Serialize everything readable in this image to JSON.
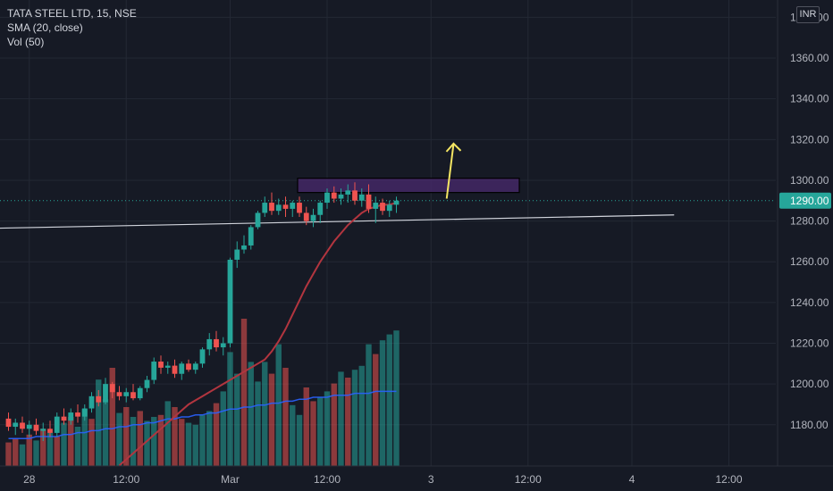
{
  "legend": {
    "symbol": "TATA STEEL LTD, 15, NSE",
    "sma": "SMA (20, close)",
    "vol": "Vol (50)"
  },
  "currency": "INR",
  "colors": {
    "background": "#161a25",
    "up": "#26a69a",
    "down": "#ef5350",
    "sma": "#b2353f",
    "vol_ma": "#2962ff",
    "resistance_box": "#4a2a6e",
    "arrow": "#f5e663",
    "support_line": "#d1d4dc",
    "price_badge": "#26a69a"
  },
  "chart_data": {
    "type": "candlestick",
    "symbol": "TATA STEEL LTD",
    "interval": "15",
    "exchange": "NSE",
    "y_axis": {
      "ticks": [
        "1380.00",
        "1360.00",
        "1340.00",
        "1320.00",
        "1300.00",
        "1280.00",
        "1260.00",
        "1240.00",
        "1220.00",
        "1200.00",
        "1180.00"
      ],
      "ylim": [
        1165,
        1385
      ]
    },
    "x_axis": {
      "ticks": [
        {
          "label": "28",
          "bar": 3
        },
        {
          "label": "12:00",
          "bar": 17
        },
        {
          "label": "Mar",
          "bar": 32
        },
        {
          "label": "12:00",
          "bar": 46
        },
        {
          "label": "3",
          "bar": 61
        },
        {
          "label": "12:00",
          "bar": 75
        },
        {
          "label": "4",
          "bar": 90
        },
        {
          "label": "12:00",
          "bar": 104
        }
      ]
    },
    "last_price": "1290.00",
    "last_price_value": 1290,
    "candles": [
      [
        1183,
        1186,
        1177,
        1179
      ],
      [
        1179,
        1183,
        1175,
        1181
      ],
      [
        1181,
        1184,
        1176,
        1178
      ],
      [
        1178,
        1182,
        1174,
        1180
      ],
      [
        1180,
        1183,
        1175,
        1177
      ],
      [
        1177,
        1181,
        1172,
        1178
      ],
      [
        1178,
        1182,
        1174,
        1176
      ],
      [
        1176,
        1186,
        1174,
        1184
      ],
      [
        1184,
        1188,
        1180,
        1182
      ],
      [
        1182,
        1188,
        1180,
        1186
      ],
      [
        1186,
        1190,
        1181,
        1184
      ],
      [
        1184,
        1190,
        1182,
        1188
      ],
      [
        1188,
        1196,
        1186,
        1194
      ],
      [
        1194,
        1197,
        1189,
        1191
      ],
      [
        1191,
        1203,
        1190,
        1200
      ],
      [
        1200,
        1201,
        1193,
        1196
      ],
      [
        1196,
        1199,
        1192,
        1194
      ],
      [
        1194,
        1198,
        1191,
        1196
      ],
      [
        1196,
        1200,
        1192,
        1193
      ],
      [
        1193,
        1199,
        1192,
        1198
      ],
      [
        1198,
        1204,
        1196,
        1202
      ],
      [
        1202,
        1213,
        1200,
        1211
      ],
      [
        1211,
        1214,
        1205,
        1208
      ],
      [
        1208,
        1211,
        1205,
        1209
      ],
      [
        1209,
        1212,
        1203,
        1205
      ],
      [
        1205,
        1211,
        1202,
        1210
      ],
      [
        1210,
        1212,
        1206,
        1207
      ],
      [
        1207,
        1211,
        1205,
        1210
      ],
      [
        1210,
        1218,
        1208,
        1217
      ],
      [
        1217,
        1225,
        1214,
        1222
      ],
      [
        1222,
        1226,
        1216,
        1218
      ],
      [
        1218,
        1223,
        1214,
        1220
      ],
      [
        1220,
        1262,
        1218,
        1261
      ],
      [
        1261,
        1270,
        1257,
        1266
      ],
      [
        1266,
        1273,
        1264,
        1268
      ],
      [
        1268,
        1278,
        1266,
        1277
      ],
      [
        1277,
        1285,
        1276,
        1284
      ],
      [
        1284,
        1292,
        1282,
        1289
      ],
      [
        1289,
        1294,
        1283,
        1285
      ],
      [
        1285,
        1291,
        1283,
        1288
      ],
      [
        1288,
        1292,
        1282,
        1286
      ],
      [
        1286,
        1290,
        1282,
        1289
      ],
      [
        1289,
        1292,
        1282,
        1284
      ],
      [
        1284,
        1287,
        1278,
        1280
      ],
      [
        1280,
        1286,
        1277,
        1283
      ],
      [
        1283,
        1290,
        1279,
        1289
      ],
      [
        1289,
        1296,
        1286,
        1294
      ],
      [
        1294,
        1297,
        1289,
        1291
      ],
      [
        1291,
        1296,
        1288,
        1293
      ],
      [
        1293,
        1298,
        1289,
        1295
      ],
      [
        1295,
        1299,
        1288,
        1290
      ],
      [
        1290,
        1296,
        1287,
        1293
      ],
      [
        1293,
        1298,
        1284,
        1286
      ],
      [
        1286,
        1292,
        1279,
        1289
      ],
      [
        1289,
        1291,
        1283,
        1285
      ],
      [
        1285,
        1290,
        1282,
        1288
      ],
      [
        1288,
        1292,
        1284,
        1290
      ]
    ],
    "sma_values": [
      1160,
      1163,
      1166,
      1169,
      1172,
      1175,
      1178,
      1181,
      1184,
      1187,
      1190,
      1192,
      1194,
      1196,
      1198,
      1200,
      1202,
      1204,
      1206,
      1208,
      1210,
      1212,
      1216,
      1221,
      1227,
      1234,
      1241,
      1248,
      1254,
      1260,
      1265,
      1270,
      1274,
      1278,
      1281,
      1284,
      1286,
      1287,
      1288,
      1288,
      1289
    ],
    "sma_start_bar": 16,
    "volumes": [
      12,
      14,
      11,
      16,
      13,
      19,
      17,
      15,
      22,
      25,
      20,
      29,
      24,
      44,
      34,
      50,
      27,
      30,
      25,
      28,
      23,
      25,
      26,
      33,
      30,
      24,
      22,
      21,
      26,
      28,
      32,
      38,
      58,
      47,
      75,
      53,
      43,
      53,
      47,
      62,
      50,
      31,
      26,
      40,
      33,
      35,
      38,
      42,
      48,
      45,
      49,
      51,
      62,
      57,
      64,
      67,
      69
    ],
    "volume_colors": [
      "down",
      "down",
      "up",
      "down",
      "up",
      "down",
      "up",
      "down",
      "up",
      "down",
      "up",
      "up",
      "down",
      "up",
      "up",
      "down",
      "up",
      "down",
      "up",
      "down",
      "up",
      "up",
      "down",
      "up",
      "down",
      "down",
      "up",
      "up",
      "up",
      "up",
      "down",
      "up",
      "up",
      "up",
      "down",
      "up",
      "up",
      "up",
      "down",
      "up",
      "down",
      "up",
      "up",
      "down",
      "down",
      "up",
      "up",
      "down",
      "up",
      "down",
      "up",
      "up",
      "up",
      "down",
      "up",
      "up",
      "up"
    ],
    "vol_ma_values": [
      14,
      14,
      14,
      14,
      15,
      15,
      15,
      15,
      16,
      16,
      17,
      17,
      18,
      18,
      19,
      19,
      20,
      20,
      21,
      21,
      22,
      22,
      23,
      24,
      24,
      25,
      25,
      26,
      26,
      27,
      27,
      28,
      29,
      29,
      30,
      30,
      31,
      31,
      32,
      32,
      33,
      33,
      34,
      34,
      35,
      35,
      35,
      36,
      36,
      36,
      37,
      37,
      37,
      38,
      38,
      38,
      38
    ],
    "volume_max": 100,
    "support_line": {
      "from": [
        0,
        1276.5
      ],
      "to": [
        89,
        1283
      ]
    },
    "resistance_zone": {
      "x0": 42,
      "x1": 74,
      "y0": 1294,
      "y1": 1301
    },
    "arrow": {
      "from": [
        63,
        1291
      ],
      "to": [
        64,
        1318
      ]
    }
  }
}
